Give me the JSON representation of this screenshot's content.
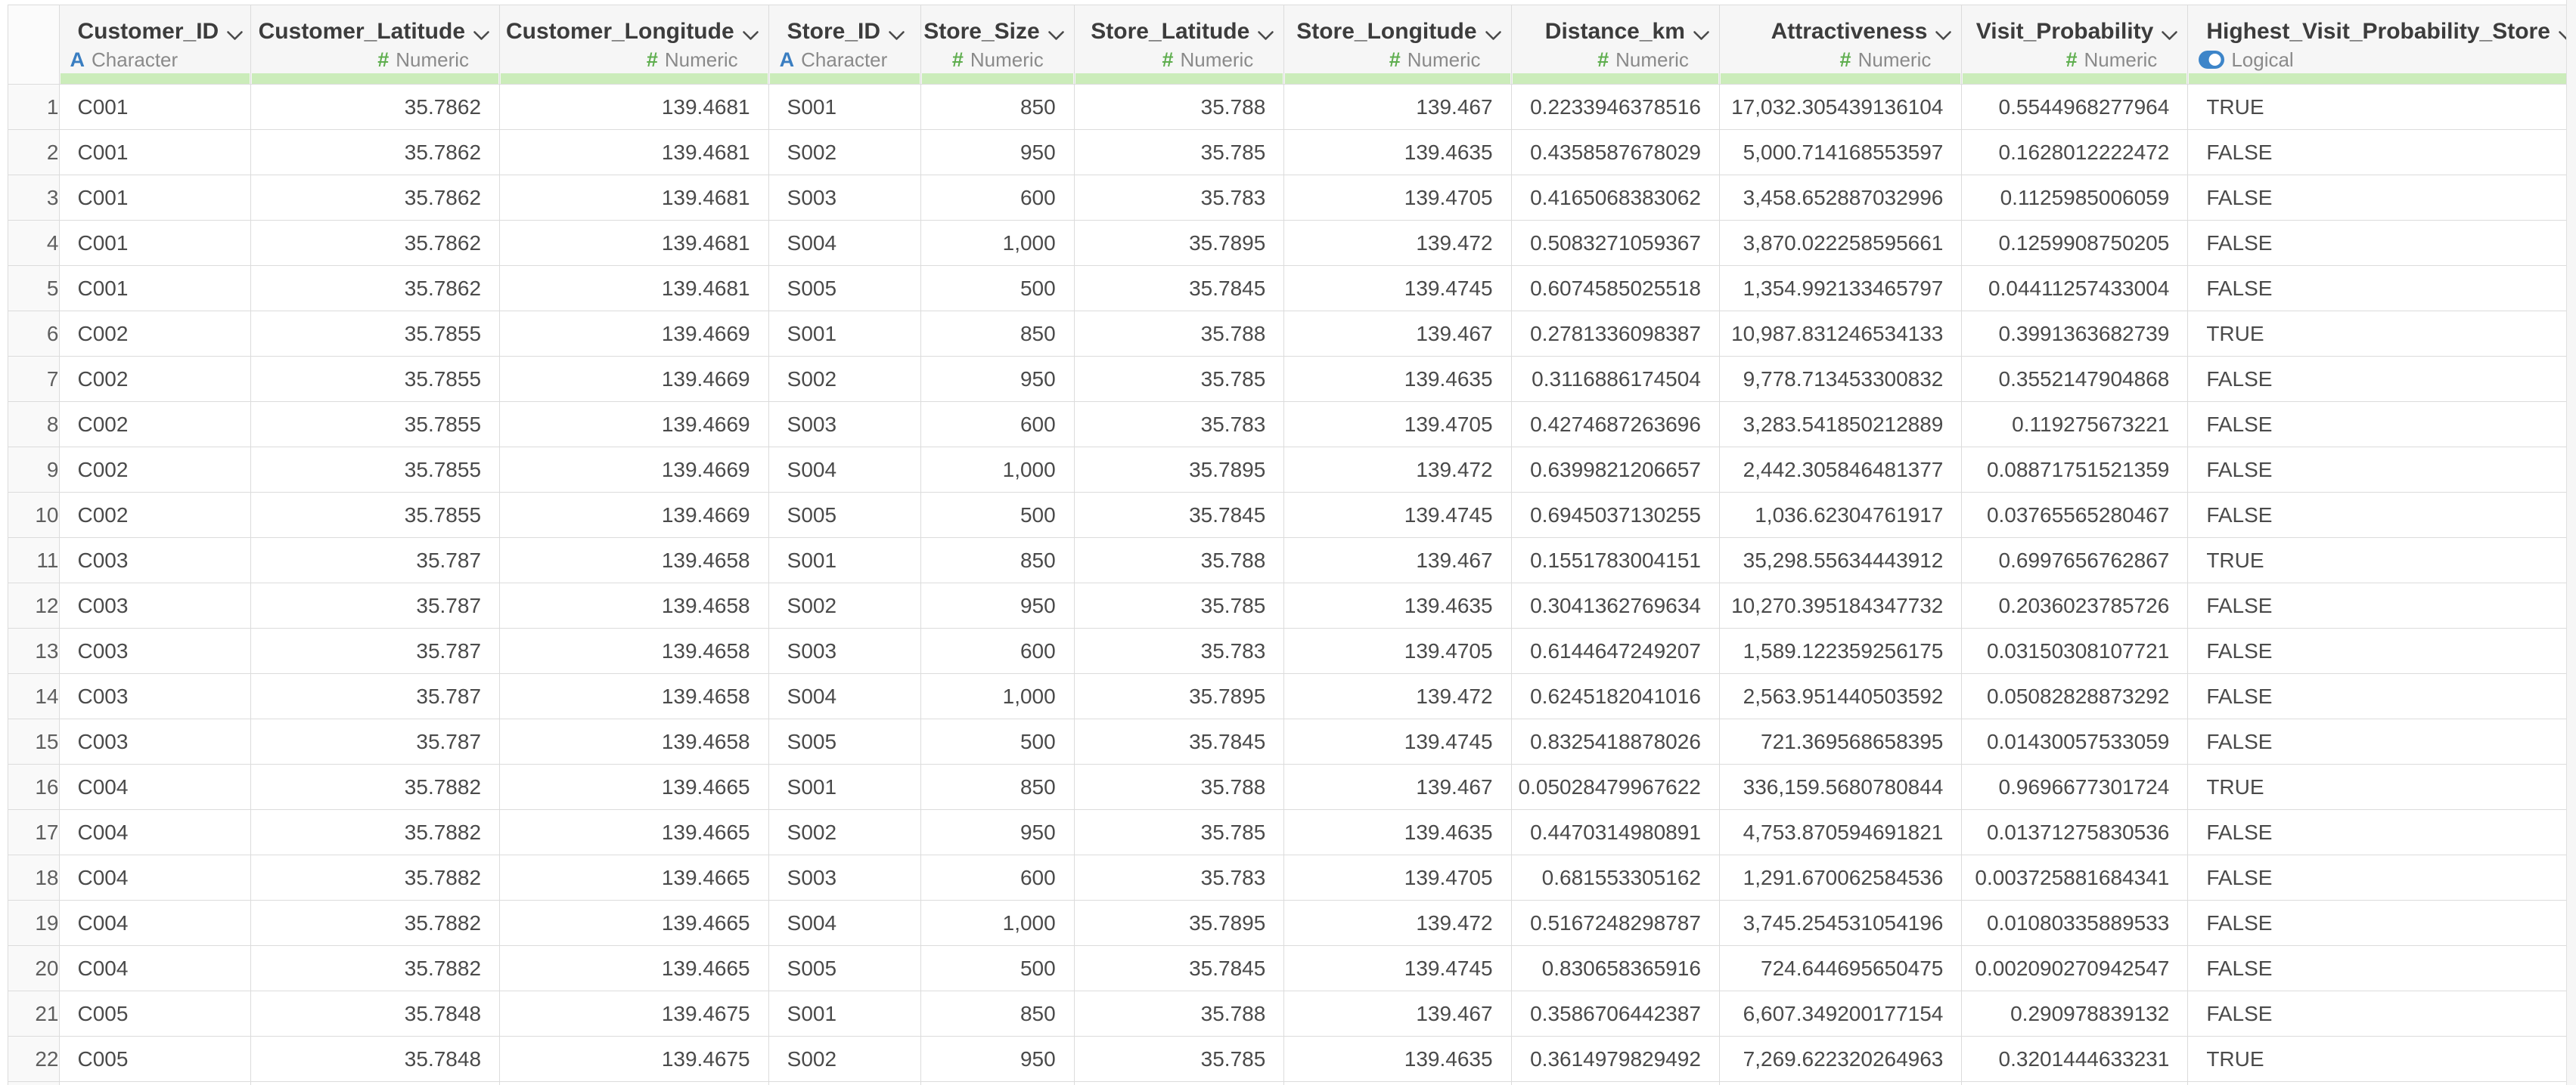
{
  "colors": {
    "green_bar": "#cbecba",
    "header_bg": "#f6f6f6",
    "gutter_bg": "#f9f9f9",
    "border": "#dcdcdc",
    "title_text": "#3c3c3c",
    "type_text": "#8a8a8a",
    "data_text": "#4a4a4a",
    "rownum_text": "#5f5f5f",
    "icon_blue": "#3a7ec1",
    "icon_green": "#5fae4f",
    "logical_blue": "#3d85c9",
    "chevron": "#4a4a4a"
  },
  "table": {
    "columns": [
      {
        "label": "Customer_ID",
        "type": "Character",
        "align": "left"
      },
      {
        "label": "Customer_Latitude",
        "type": "Numeric",
        "align": "right"
      },
      {
        "label": "Customer_Longitude",
        "type": "Numeric",
        "align": "right"
      },
      {
        "label": "Store_ID",
        "type": "Character",
        "align": "left"
      },
      {
        "label": "Store_Size",
        "type": "Numeric",
        "align": "right"
      },
      {
        "label": "Store_Latitude",
        "type": "Numeric",
        "align": "right"
      },
      {
        "label": "Store_Longitude",
        "type": "Numeric",
        "align": "right"
      },
      {
        "label": "Distance_km",
        "type": "Numeric",
        "align": "right"
      },
      {
        "label": "Attractiveness",
        "type": "Numeric",
        "align": "right"
      },
      {
        "label": "Visit_Probability",
        "type": "Numeric",
        "align": "right"
      },
      {
        "label": "Highest_Visit_Probability_Store",
        "type": "Logical",
        "align": "left"
      }
    ],
    "row_numbers": [
      "1",
      "2",
      "3",
      "4",
      "5",
      "6",
      "7",
      "8",
      "9",
      "10",
      "11",
      "12",
      "13",
      "14",
      "15",
      "16",
      "17",
      "18",
      "19",
      "20",
      "21",
      "22"
    ],
    "rows": [
      [
        "C001",
        "35.7862",
        "139.4681",
        "S001",
        "850",
        "35.788",
        "139.467",
        "0.2233946378516",
        "17,032.305439136104",
        "0.5544968277964",
        "TRUE"
      ],
      [
        "C001",
        "35.7862",
        "139.4681",
        "S002",
        "950",
        "35.785",
        "139.4635",
        "0.4358587678029",
        "5,000.714168553597",
        "0.1628012222472",
        "FALSE"
      ],
      [
        "C001",
        "35.7862",
        "139.4681",
        "S003",
        "600",
        "35.783",
        "139.4705",
        "0.4165068383062",
        "3,458.652887032996",
        "0.1125985006059",
        "FALSE"
      ],
      [
        "C001",
        "35.7862",
        "139.4681",
        "S004",
        "1,000",
        "35.7895",
        "139.472",
        "0.5083271059367",
        "3,870.022258595661",
        "0.1259908750205",
        "FALSE"
      ],
      [
        "C001",
        "35.7862",
        "139.4681",
        "S005",
        "500",
        "35.7845",
        "139.4745",
        "0.6074585025518",
        "1,354.992133465797",
        "0.04411257433004",
        "FALSE"
      ],
      [
        "C002",
        "35.7855",
        "139.4669",
        "S001",
        "850",
        "35.788",
        "139.467",
        "0.2781336098387",
        "10,987.831246534133",
        "0.3991363682739",
        "TRUE"
      ],
      [
        "C002",
        "35.7855",
        "139.4669",
        "S002",
        "950",
        "35.785",
        "139.4635",
        "0.3116886174504",
        "9,778.713453300832",
        "0.3552147904868",
        "FALSE"
      ],
      [
        "C002",
        "35.7855",
        "139.4669",
        "S003",
        "600",
        "35.783",
        "139.4705",
        "0.4274687263696",
        "3,283.541850212889",
        "0.119275673221",
        "FALSE"
      ],
      [
        "C002",
        "35.7855",
        "139.4669",
        "S004",
        "1,000",
        "35.7895",
        "139.472",
        "0.6399821206657",
        "2,442.305846481377",
        "0.08871751521359",
        "FALSE"
      ],
      [
        "C002",
        "35.7855",
        "139.4669",
        "S005",
        "500",
        "35.7845",
        "139.4745",
        "0.6945037130255",
        "1,036.62304761917",
        "0.03765565280467",
        "FALSE"
      ],
      [
        "C003",
        "35.787",
        "139.4658",
        "S001",
        "850",
        "35.788",
        "139.467",
        "0.1551783004151",
        "35,298.55634443912",
        "0.6997656762867",
        "TRUE"
      ],
      [
        "C003",
        "35.787",
        "139.4658",
        "S002",
        "950",
        "35.785",
        "139.4635",
        "0.3041362769634",
        "10,270.395184347732",
        "0.2036023785726",
        "FALSE"
      ],
      [
        "C003",
        "35.787",
        "139.4658",
        "S003",
        "600",
        "35.783",
        "139.4705",
        "0.6144647249207",
        "1,589.122359256175",
        "0.03150308107721",
        "FALSE"
      ],
      [
        "C003",
        "35.787",
        "139.4658",
        "S004",
        "1,000",
        "35.7895",
        "139.472",
        "0.6245182041016",
        "2,563.951440503592",
        "0.05082828873292",
        "FALSE"
      ],
      [
        "C003",
        "35.787",
        "139.4658",
        "S005",
        "500",
        "35.7845",
        "139.4745",
        "0.8325418878026",
        "721.369568658395",
        "0.01430057533059",
        "FALSE"
      ],
      [
        "C004",
        "35.7882",
        "139.4665",
        "S001",
        "850",
        "35.788",
        "139.467",
        "0.05028479967622",
        "336,159.5680780844",
        "0.9696677301724",
        "TRUE"
      ],
      [
        "C004",
        "35.7882",
        "139.4665",
        "S002",
        "950",
        "35.785",
        "139.4635",
        "0.4470314980891",
        "4,753.870594691821",
        "0.01371275830536",
        "FALSE"
      ],
      [
        "C004",
        "35.7882",
        "139.4665",
        "S003",
        "600",
        "35.783",
        "139.4705",
        "0.681553305162",
        "1,291.670062584536",
        "0.003725881684341",
        "FALSE"
      ],
      [
        "C004",
        "35.7882",
        "139.4665",
        "S004",
        "1,000",
        "35.7895",
        "139.472",
        "0.5167248298787",
        "3,745.254531054196",
        "0.01080335889533",
        "FALSE"
      ],
      [
        "C004",
        "35.7882",
        "139.4665",
        "S005",
        "500",
        "35.7845",
        "139.4745",
        "0.830658365916",
        "724.644695650475",
        "0.002090270942547",
        "FALSE"
      ],
      [
        "C005",
        "35.7848",
        "139.4675",
        "S001",
        "850",
        "35.788",
        "139.467",
        "0.3586706442387",
        "6,607.349200177154",
        "0.290978839132",
        "FALSE"
      ],
      [
        "C005",
        "35.7848",
        "139.4675",
        "S002",
        "950",
        "35.785",
        "139.4635",
        "0.3614979829492",
        "7,269.622320264963",
        "0.3201444633231",
        "TRUE"
      ]
    ]
  }
}
